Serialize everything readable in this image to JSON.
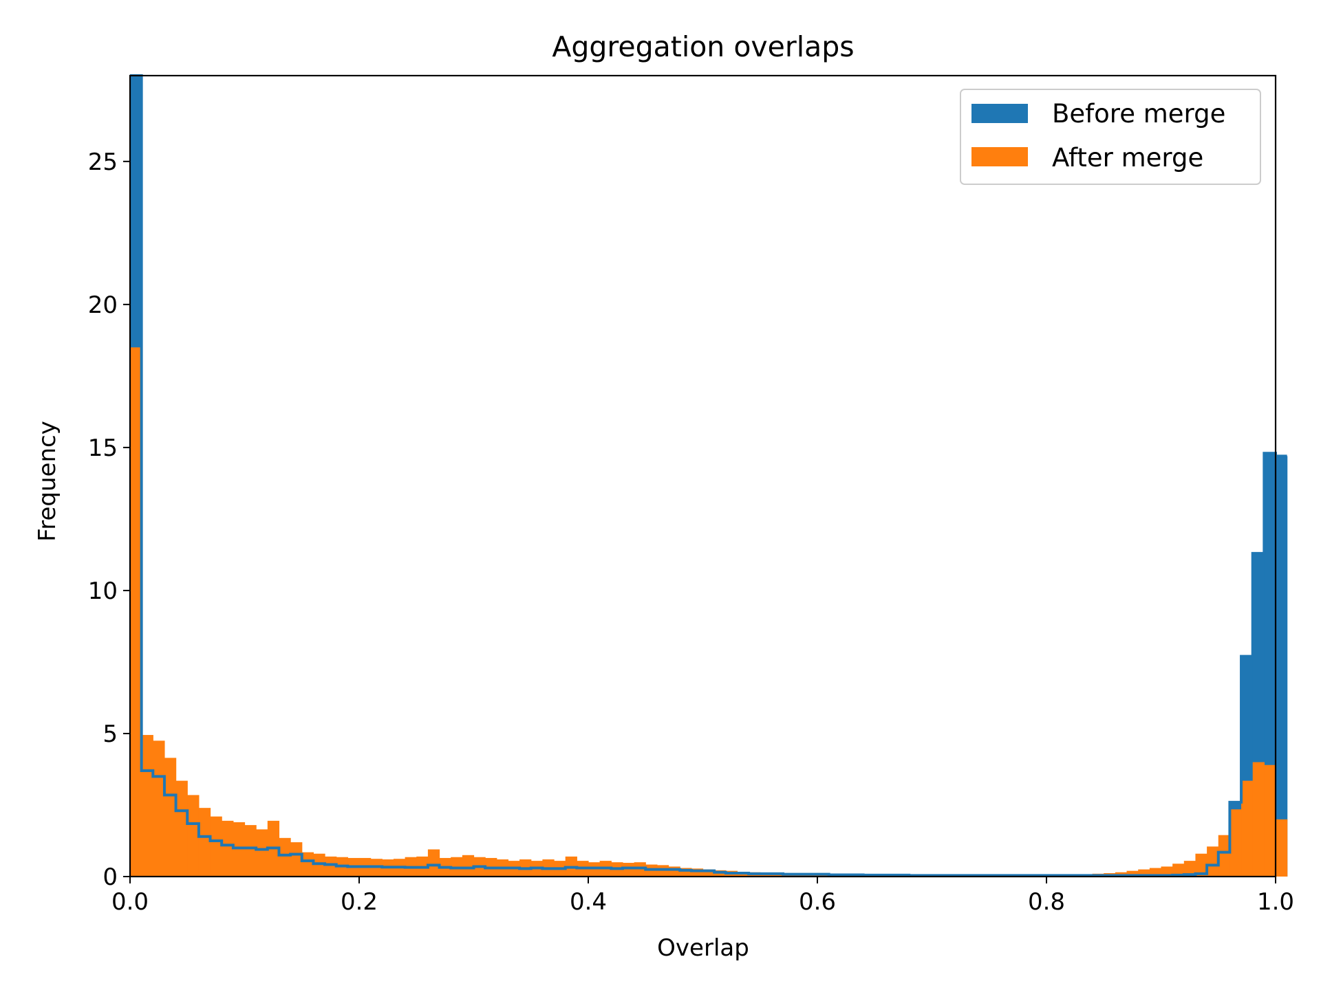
{
  "chart_data": {
    "type": "bar",
    "title": "Aggregation overlaps",
    "xlabel": "Overlap",
    "ylabel": "Frequency",
    "xlim": [
      0,
      1
    ],
    "ylim": [
      0,
      28
    ],
    "bin_width": 0.01,
    "xticks": [
      "0.0",
      "0.2",
      "0.4",
      "0.6",
      "0.8",
      "1.0"
    ],
    "yticks": [
      "0",
      "5",
      "10",
      "15",
      "20",
      "25"
    ],
    "grid": false,
    "legend_position": "top-right",
    "series": [
      {
        "name": "Before merge",
        "color": "#1f77b4",
        "style": "filled-bars-with-step-outline",
        "values": [
          28.5,
          3.7,
          3.5,
          2.85,
          2.3,
          1.85,
          1.4,
          1.25,
          1.1,
          1.0,
          1.0,
          0.95,
          1.0,
          0.75,
          0.78,
          0.55,
          0.45,
          0.42,
          0.37,
          0.35,
          0.35,
          0.35,
          0.33,
          0.33,
          0.32,
          0.32,
          0.4,
          0.32,
          0.3,
          0.3,
          0.35,
          0.3,
          0.3,
          0.3,
          0.28,
          0.3,
          0.28,
          0.28,
          0.32,
          0.3,
          0.3,
          0.3,
          0.28,
          0.3,
          0.3,
          0.25,
          0.25,
          0.25,
          0.22,
          0.2,
          0.2,
          0.15,
          0.12,
          0.12,
          0.1,
          0.1,
          0.1,
          0.08,
          0.08,
          0.08,
          0.08,
          0.06,
          0.06,
          0.06,
          0.05,
          0.05,
          0.05,
          0.05,
          0.04,
          0.04,
          0.04,
          0.04,
          0.04,
          0.04,
          0.04,
          0.04,
          0.04,
          0.04,
          0.04,
          0.04,
          0.04,
          0.04,
          0.04,
          0.04,
          0.04,
          0.04,
          0.04,
          0.04,
          0.04,
          0.04,
          0.04,
          0.05,
          0.07,
          0.1,
          0.4,
          0.85,
          2.6,
          7.7,
          11.3,
          14.8,
          14.7
        ]
      },
      {
        "name": "After merge",
        "color": "#ff7f0e",
        "style": "filled-bars",
        "values": [
          18.5,
          4.95,
          4.75,
          4.15,
          3.35,
          2.85,
          2.4,
          2.1,
          1.95,
          1.9,
          1.8,
          1.65,
          1.95,
          1.35,
          1.2,
          0.85,
          0.8,
          0.7,
          0.68,
          0.65,
          0.65,
          0.62,
          0.6,
          0.62,
          0.68,
          0.7,
          0.95,
          0.65,
          0.68,
          0.75,
          0.68,
          0.65,
          0.6,
          0.55,
          0.6,
          0.55,
          0.6,
          0.55,
          0.7,
          0.55,
          0.5,
          0.55,
          0.5,
          0.48,
          0.5,
          0.42,
          0.4,
          0.35,
          0.3,
          0.28,
          0.25,
          0.22,
          0.2,
          0.15,
          0.15,
          0.12,
          0.12,
          0.12,
          0.1,
          0.1,
          0.1,
          0.08,
          0.08,
          0.08,
          0.06,
          0.06,
          0.06,
          0.06,
          0.05,
          0.05,
          0.05,
          0.05,
          0.05,
          0.05,
          0.05,
          0.05,
          0.05,
          0.05,
          0.05,
          0.06,
          0.06,
          0.06,
          0.08,
          0.08,
          0.1,
          0.12,
          0.15,
          0.2,
          0.25,
          0.3,
          0.35,
          0.45,
          0.55,
          0.8,
          1.05,
          1.45,
          2.35,
          3.35,
          4.0,
          3.9,
          2.0
        ]
      }
    ]
  }
}
